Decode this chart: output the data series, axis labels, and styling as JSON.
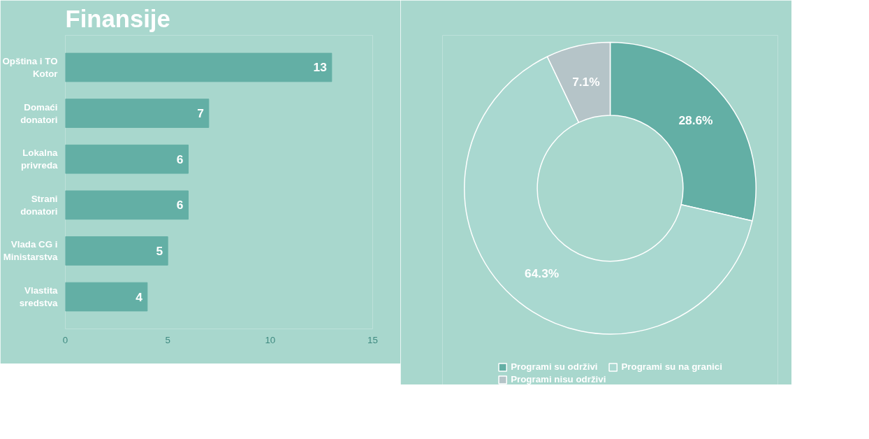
{
  "chart_data": [
    {
      "type": "bar",
      "title": "Finansije",
      "orientation": "horizontal",
      "categories": [
        "Opština i TO Kotor",
        "Domaći donatori",
        "Lokalna privreda",
        "Strani donatori",
        "Vlada CG i Ministarstva",
        "Vlastita sredstva"
      ],
      "values": [
        13,
        7,
        6,
        6,
        5,
        4
      ],
      "color": "#63afa5",
      "xlim": [
        0,
        15
      ],
      "xticks": [
        0,
        5,
        10,
        15
      ],
      "data_labels": true
    },
    {
      "type": "donut",
      "categories": [
        "Programi su održivi",
        "Programi su na granici",
        "Programi nisu održivi"
      ],
      "values": [
        28.6,
        64.3,
        7.1
      ],
      "value_labels": [
        "28.6%",
        "64.3%",
        "7.1%"
      ],
      "colors": [
        "#63afa5",
        "#a9d8d0",
        "#b5c4c8"
      ],
      "legend": "bottom"
    }
  ]
}
